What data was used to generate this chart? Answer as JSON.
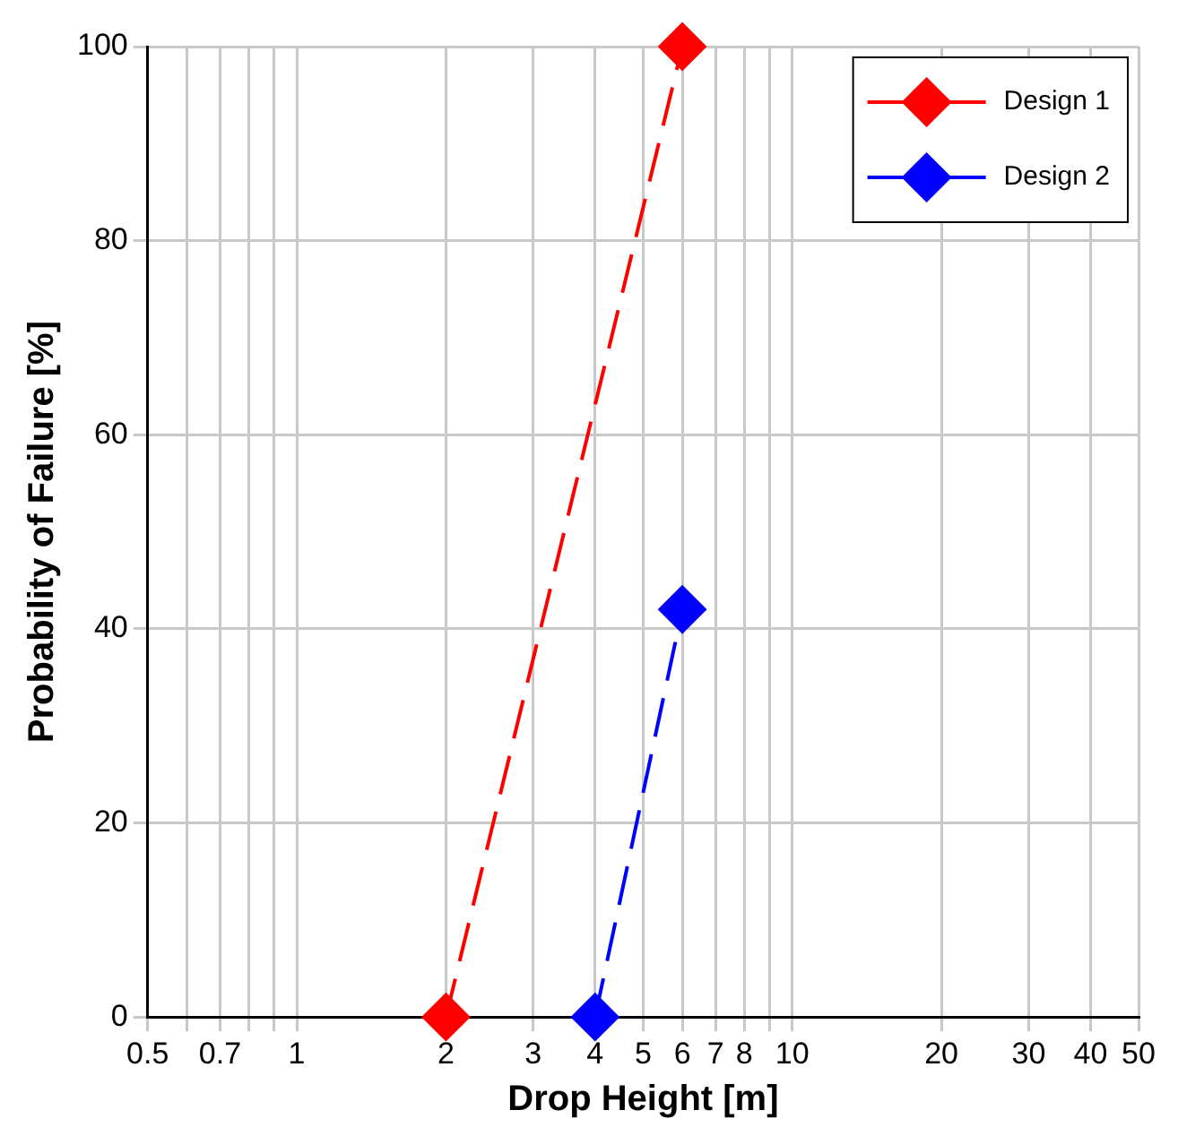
{
  "chart_data": {
    "type": "line",
    "xlabel": "Drop Height [m]",
    "ylabel": "Probability of Failure [%]",
    "log": "x",
    "xlim": [
      0.5,
      50
    ],
    "xticks": [
      0.5,
      {
        "value": 0.6,
        "label": null
      },
      0.7,
      {
        "value": 0.8,
        "label": null
      },
      {
        "value": 0.9,
        "label": null
      },
      1,
      2,
      3,
      4,
      5,
      6,
      7,
      8,
      {
        "value": 9,
        "label": null
      },
      10,
      20,
      30,
      40,
      50
    ],
    "ylim": [
      0,
      100
    ],
    "yticks": [
      0,
      20,
      40,
      60,
      80,
      100
    ],
    "grid": true,
    "legend": "top right",
    "marker": "diamond",
    "line_style": "dashed",
    "series": [
      {
        "name": "Design 1",
        "color": "#ff0000",
        "x": [
          2,
          6
        ],
        "values": [
          0,
          100
        ]
      },
      {
        "name": "Design 2",
        "color": "#0000ff",
        "x": [
          4,
          6
        ],
        "values": [
          0,
          42
        ]
      }
    ]
  }
}
